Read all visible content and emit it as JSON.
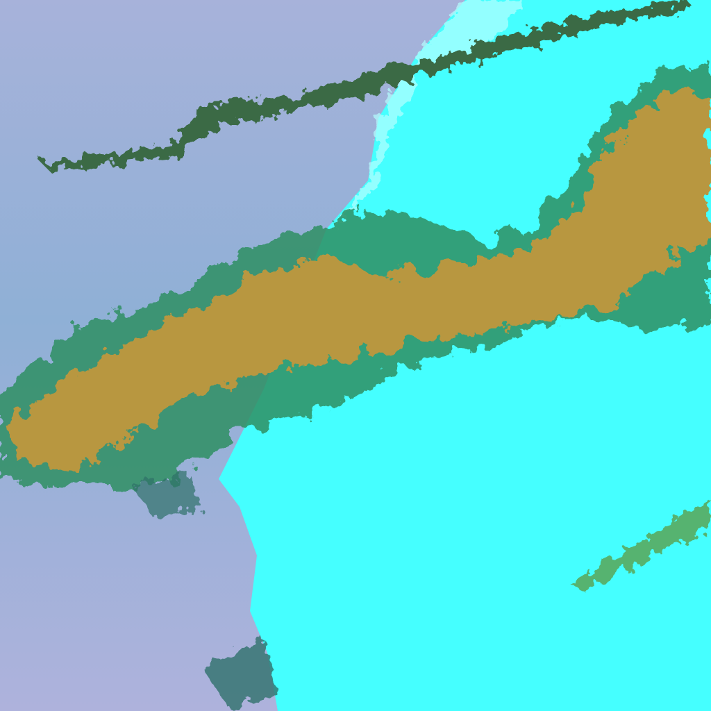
{
  "image": {
    "kind": "false-color satellite scene",
    "colors": {
      "ocean": "#a3b3d9",
      "ocean_dark": "#7ea6cf",
      "land": "#45ffff",
      "land_pale": "#b4ffff",
      "cloud_core": "#b8973f",
      "cloud_edge": "#2f8f63",
      "cloud_shadow": "#1f4f7a"
    }
  }
}
